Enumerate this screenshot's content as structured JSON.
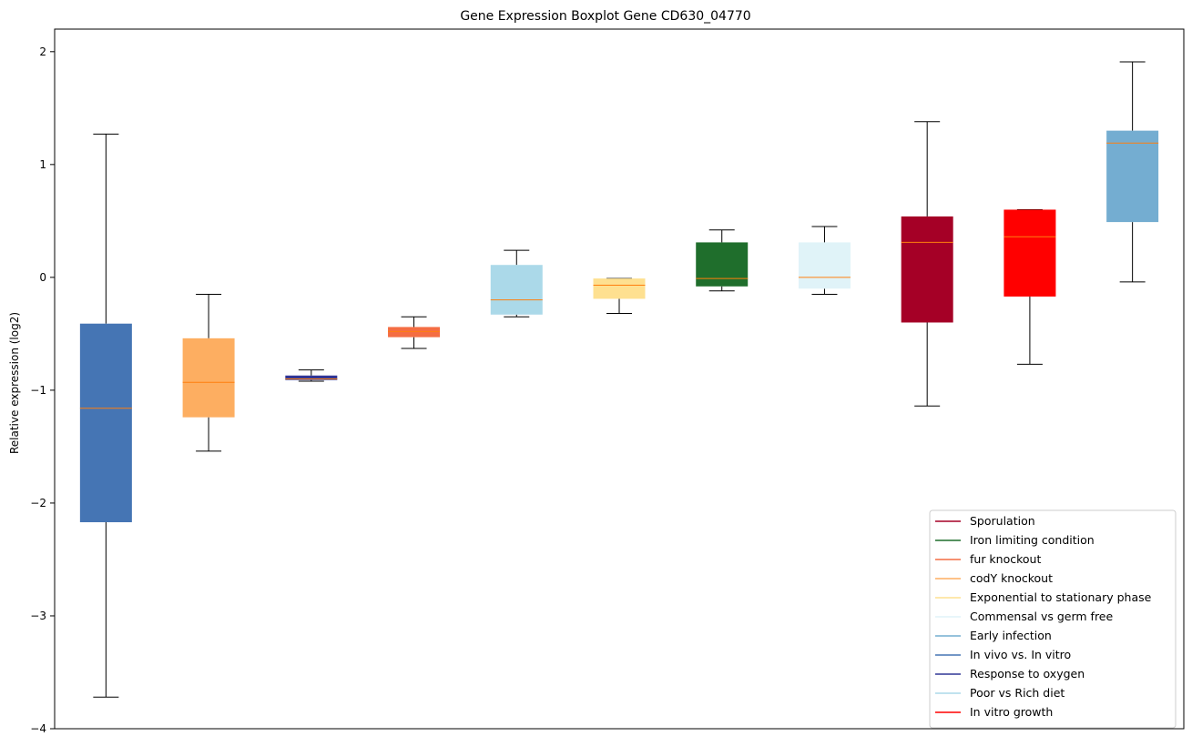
{
  "chart_data": {
    "type": "boxplot",
    "title": "Gene Expression Boxplot Gene CD630_04770",
    "xlabel": "",
    "ylabel": "Relative expression (log2)",
    "ylim": [
      -4,
      2.2
    ],
    "yticks": [
      -4,
      -3,
      -2,
      -1,
      0,
      1,
      2
    ],
    "ytick_labels": [
      "−4",
      "−3",
      "−2",
      "−1",
      "0",
      "1",
      "2"
    ],
    "grid": false,
    "legend_position": "lower-right",
    "median_color": "#ff7f0e",
    "boxes": [
      {
        "name": "In vivo vs. In vitro",
        "color": "#4575b4",
        "whisker_low": -3.72,
        "q1": -2.17,
        "median": -1.16,
        "q3": -0.41,
        "whisker_high": 1.27
      },
      {
        "name": "codY knockout",
        "color": "#fdae61",
        "whisker_low": -1.54,
        "q1": -1.24,
        "median": -0.93,
        "q3": -0.54,
        "whisker_high": -0.15
      },
      {
        "name": "Response to oxygen",
        "color": "#313695",
        "whisker_low": -0.92,
        "q1": -0.91,
        "median": -0.9,
        "q3": -0.87,
        "whisker_high": -0.82
      },
      {
        "name": "fur knockout",
        "color": "#f46d43",
        "whisker_low": -0.63,
        "q1": -0.53,
        "median": -0.48,
        "q3": -0.44,
        "whisker_high": -0.35
      },
      {
        "name": "Poor vs Rich diet",
        "color": "#abd9e9",
        "whisker_low": -0.35,
        "q1": -0.33,
        "median": -0.2,
        "q3": 0.11,
        "whisker_high": 0.24
      },
      {
        "name": "Exponential to stationary phase",
        "color": "#fee090",
        "whisker_low": -0.32,
        "q1": -0.19,
        "median": -0.07,
        "q3": -0.01,
        "whisker_high": -0.01
      },
      {
        "name": "Iron limiting condition",
        "color": "#1f6e2c",
        "whisker_low": -0.12,
        "q1": -0.08,
        "median": -0.01,
        "q3": 0.31,
        "whisker_high": 0.42
      },
      {
        "name": "Commensal vs germ free",
        "color": "#e0f3f8",
        "whisker_low": -0.15,
        "q1": -0.1,
        "median": 0.0,
        "q3": 0.31,
        "whisker_high": 0.45
      },
      {
        "name": "Sporulation",
        "color": "#a50026",
        "whisker_low": -1.14,
        "q1": -0.4,
        "median": 0.31,
        "q3": 0.54,
        "whisker_high": 1.38
      },
      {
        "name": "In vitro growth",
        "color": "#ff0000",
        "whisker_low": -0.77,
        "q1": -0.17,
        "median": 0.36,
        "q3": 0.6,
        "whisker_high": 0.6
      },
      {
        "name": "Early infection",
        "color": "#74add1",
        "whisker_low": -0.04,
        "q1": 0.49,
        "median": 1.19,
        "q3": 1.3,
        "whisker_high": 1.91
      }
    ],
    "legend": [
      {
        "label": "Sporulation",
        "color": "#a50026"
      },
      {
        "label": "Iron limiting condition",
        "color": "#1f6e2c"
      },
      {
        "label": "fur knockout",
        "color": "#f46d43"
      },
      {
        "label": "codY knockout",
        "color": "#fdae61"
      },
      {
        "label": "Exponential to stationary phase",
        "color": "#fee090"
      },
      {
        "label": "Commensal vs germ free",
        "color": "#e0f3f8"
      },
      {
        "label": "Early infection",
        "color": "#74add1"
      },
      {
        "label": "In vivo vs. In vitro",
        "color": "#4575b4"
      },
      {
        "label": "Response to oxygen",
        "color": "#313695"
      },
      {
        "label": "Poor vs Rich diet",
        "color": "#abd9e9"
      },
      {
        "label": "In vitro growth",
        "color": "#ff0000"
      }
    ]
  }
}
